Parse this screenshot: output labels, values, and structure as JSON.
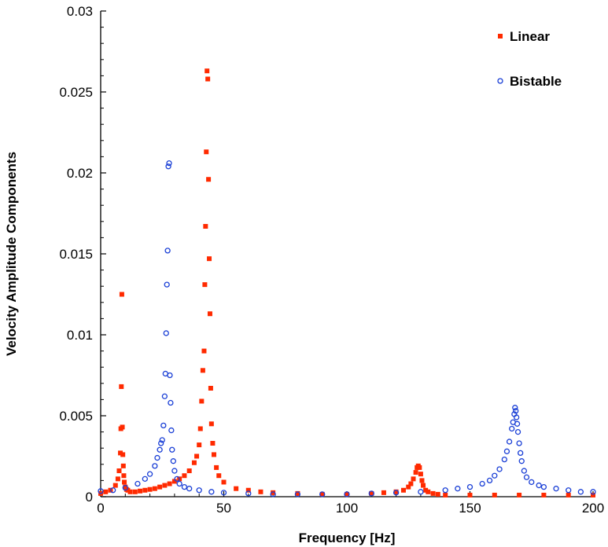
{
  "chart_data": {
    "type": "scatter",
    "title": "",
    "xlabel": "Frequency [Hz]",
    "ylabel": "Velocity Amplitude Components",
    "xlim": [
      0,
      200
    ],
    "ylim": [
      0,
      0.03
    ],
    "x_ticks": [
      "0",
      "50",
      "100",
      "150",
      "200"
    ],
    "y_ticks": [
      "0",
      "0.005",
      "0.01",
      "0.015",
      "0.02",
      "0.025",
      "0.03"
    ],
    "grid": false,
    "legend_position": "top-right",
    "series": [
      {
        "name": "Linear",
        "marker": "square",
        "color": "#ff2a00",
        "x": [
          0,
          2,
          4,
          6,
          7,
          7.5,
          8,
          8.2,
          8.4,
          8.6,
          8.8,
          9,
          9.2,
          9.4,
          9.6,
          10,
          10.5,
          11,
          12,
          14,
          16,
          18,
          20,
          22,
          24,
          26,
          28,
          30,
          32,
          34,
          36,
          38,
          39,
          40,
          40.5,
          41,
          41.5,
          42,
          42.3,
          42.6,
          42.9,
          43.2,
          43.5,
          43.8,
          44.1,
          44.4,
          44.7,
          45,
          45.5,
          46,
          47,
          48,
          50,
          55,
          60,
          65,
          70,
          80,
          90,
          100,
          110,
          115,
          120,
          123,
          125,
          126,
          127,
          128,
          128.5,
          129,
          129.5,
          130,
          130.5,
          131,
          132,
          133,
          135,
          137,
          140,
          150,
          160,
          170,
          180,
          190,
          200
        ],
        "y": [
          0.0002,
          0.0003,
          0.0004,
          0.0007,
          0.0011,
          0.0016,
          0.0027,
          0.0042,
          0.0068,
          0.0125,
          0.0043,
          0.0026,
          0.0019,
          0.0013,
          0.0009,
          0.0006,
          0.00045,
          0.0004,
          0.0003,
          0.0003,
          0.00035,
          0.0004,
          0.00045,
          0.0005,
          0.0006,
          0.0007,
          0.0008,
          0.00095,
          0.0011,
          0.0013,
          0.0016,
          0.0021,
          0.0025,
          0.0032,
          0.0042,
          0.0059,
          0.0078,
          0.009,
          0.0131,
          0.0167,
          0.0213,
          0.0263,
          0.0258,
          0.0196,
          0.0147,
          0.0113,
          0.0067,
          0.0045,
          0.0033,
          0.0026,
          0.0018,
          0.0013,
          0.0009,
          0.0005,
          0.0004,
          0.0003,
          0.00025,
          0.0002,
          0.00015,
          0.00015,
          0.0002,
          0.00025,
          0.0003,
          0.0004,
          0.0006,
          0.0008,
          0.0011,
          0.0015,
          0.0018,
          0.0019,
          0.0018,
          0.0014,
          0.001,
          0.0007,
          0.0004,
          0.0003,
          0.0002,
          0.00015,
          0.0001,
          0.0001,
          0.0001,
          0.0001,
          0.0001,
          0.0001,
          0.0001
        ]
      },
      {
        "name": "Bistable",
        "marker": "circle",
        "color": "#1a3fd6",
        "x": [
          0,
          5,
          10,
          15,
          18,
          20,
          22,
          23,
          24,
          24.5,
          25,
          25.5,
          26,
          26.3,
          26.6,
          26.9,
          27.2,
          27.5,
          27.8,
          28.1,
          28.4,
          28.7,
          29,
          29.5,
          30,
          31,
          32,
          34,
          36,
          40,
          45,
          50,
          60,
          70,
          80,
          90,
          100,
          110,
          120,
          130,
          140,
          145,
          150,
          155,
          158,
          160,
          162,
          164,
          165,
          166,
          167,
          167.5,
          168,
          168.3,
          168.6,
          168.9,
          169.2,
          169.5,
          170,
          170.5,
          171,
          172,
          173,
          175,
          178,
          180,
          185,
          190,
          195,
          200
        ],
        "y": [
          0.00035,
          0.0004,
          0.00055,
          0.0008,
          0.0011,
          0.0014,
          0.0019,
          0.0024,
          0.0029,
          0.0033,
          0.0035,
          0.0044,
          0.0062,
          0.0076,
          0.0101,
          0.0131,
          0.0152,
          0.0204,
          0.0206,
          0.0075,
          0.0058,
          0.0041,
          0.0029,
          0.0022,
          0.0016,
          0.0011,
          0.0008,
          0.0006,
          0.0005,
          0.0004,
          0.0003,
          0.00025,
          0.0002,
          0.00015,
          0.00015,
          0.00015,
          0.00015,
          0.0002,
          0.00025,
          0.0003,
          0.0004,
          0.0005,
          0.0006,
          0.0008,
          0.001,
          0.0013,
          0.0017,
          0.0023,
          0.0028,
          0.0034,
          0.0042,
          0.0046,
          0.0051,
          0.0055,
          0.0053,
          0.0049,
          0.0045,
          0.004,
          0.0033,
          0.0027,
          0.0022,
          0.0016,
          0.0012,
          0.0009,
          0.0007,
          0.0006,
          0.0005,
          0.0004,
          0.0003,
          0.0003
        ]
      }
    ]
  }
}
